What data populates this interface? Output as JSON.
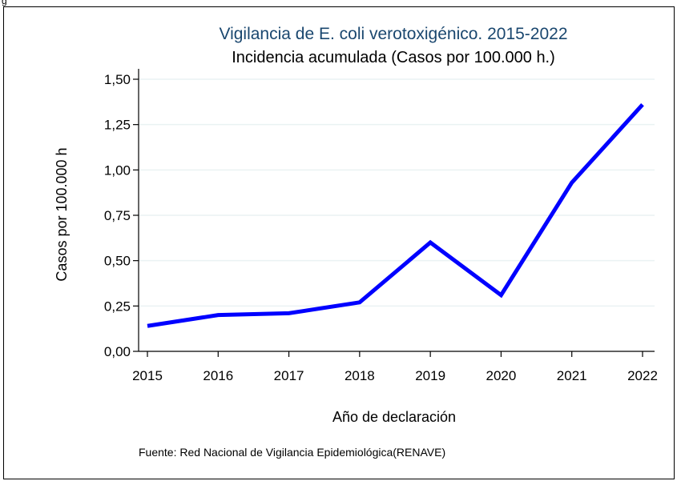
{
  "header": {
    "cut_label": "g"
  },
  "chart_data": {
    "type": "line",
    "title": "Vigilancia de E. coli verotoxigénico. 2015-2022",
    "subtitle": "Incidencia acumulada (Casos por 100.000 h.)",
    "xlabel": "Año de declaración",
    "ylabel": "Casos por 100.000 h",
    "source": "Fuente: Red Nacional de Vigilancia Epidemiológica(RENAVE)",
    "x": [
      "2015",
      "2016",
      "2017",
      "2018",
      "2019",
      "2020",
      "2021",
      "2022"
    ],
    "series": [
      {
        "values": [
          0.14,
          0.2,
          0.21,
          0.27,
          0.6,
          0.31,
          0.93,
          1.36
        ]
      }
    ],
    "ylim": [
      0,
      1.5
    ],
    "yticks": [
      "0,00",
      "0,25",
      "0,50",
      "0,75",
      "1,00",
      "1,25",
      "1,50"
    ],
    "ytick_values": [
      0,
      0.25,
      0.5,
      0.75,
      1.0,
      1.25,
      1.5
    ],
    "grid": true,
    "colors": {
      "line": "#0000ff",
      "grid": "#eaf2f3",
      "title": "#1a476f",
      "axis": "#000000"
    }
  }
}
